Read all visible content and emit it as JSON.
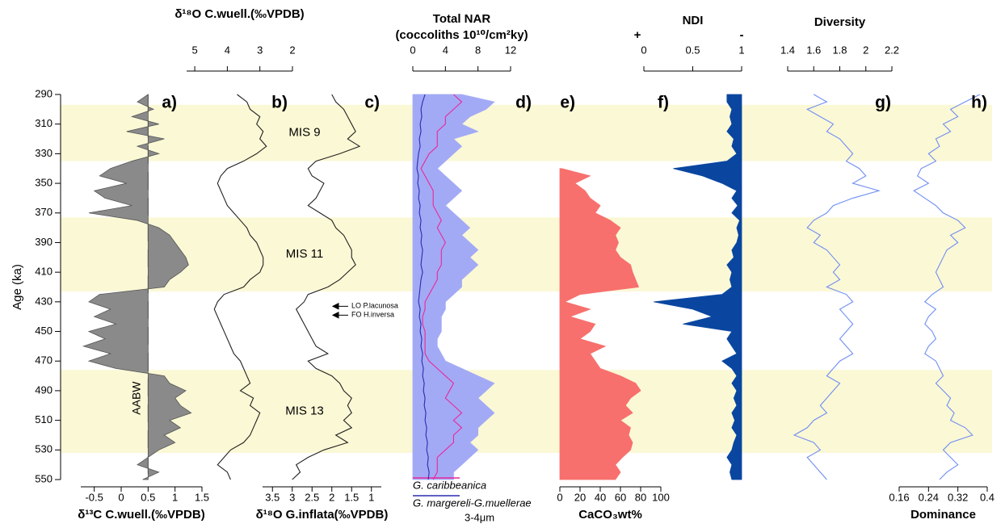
{
  "chart_data": [
    {
      "type": "axis",
      "ylabel": "Age (ka)",
      "ylim": [
        290,
        550
      ],
      "yticks": [
        290,
        310,
        330,
        350,
        370,
        390,
        410,
        430,
        450,
        470,
        490,
        510,
        530,
        550
      ],
      "y": [
        290,
        295,
        300,
        305,
        310,
        315,
        320,
        325,
        330,
        335,
        340,
        345,
        350,
        355,
        360,
        365,
        370,
        375,
        380,
        385,
        390,
        395,
        400,
        405,
        410,
        415,
        420,
        425,
        430,
        435,
        440,
        445,
        450,
        455,
        460,
        465,
        470,
        475,
        480,
        485,
        490,
        495,
        500,
        505,
        510,
        515,
        520,
        525,
        530,
        535,
        540,
        545,
        550
      ],
      "band_color": "#fbf8d5",
      "bands": [
        {
          "from": 297,
          "to": 335,
          "label": "MIS 9"
        },
        {
          "from": 373,
          "to": 423,
          "label": "MIS 11"
        },
        {
          "from": 476,
          "to": 532,
          "label": "MIS 13"
        }
      ]
    },
    {
      "type": "area",
      "label": "a)",
      "xlabel": "δ¹³C C.wuell.(‰VPDB)",
      "xaxis": "bottom",
      "xlim": [
        -0.75,
        1.5
      ],
      "xticks": [
        -0.5,
        0,
        0.5,
        1,
        1.5
      ],
      "fill_baseline": 0.5,
      "baseline_line": true,
      "annotations": [
        {
          "text": "AABW",
          "y": 495,
          "orientation": "vertical"
        }
      ],
      "series": [
        {
          "color": "#8a8a8a",
          "fill": true,
          "values": [
            0.5,
            0.3,
            0.6,
            0.2,
            0.7,
            0.1,
            0.8,
            0.3,
            0.7,
            0.2,
            -0.2,
            -0.4,
            0.1,
            -0.5,
            -0.3,
            0.2,
            -0.6,
            0.3,
            0.7,
            0.9,
            1.0,
            1.1,
            1.2,
            1.25,
            1.1,
            0.9,
            0.8,
            -0.4,
            -0.6,
            -0.2,
            -0.5,
            -0.1,
            -0.6,
            -0.3,
            -0.7,
            -0.2,
            -0.6,
            -0.1,
            0.8,
            0.9,
            1.2,
            1.0,
            1.1,
            1.3,
            0.9,
            1.1,
            0.8,
            1.0,
            0.7,
            0.5,
            0.3,
            0.7,
            0.4
          ]
        }
      ]
    },
    {
      "type": "line",
      "label": "b)",
      "xlabel": "δ¹⁸O C.wuell.(‰VPDB)",
      "xaxis": "top",
      "xlim": [
        5.25,
        2
      ],
      "xticks": [
        5,
        4,
        3,
        2
      ],
      "series": [
        {
          "color": "#222",
          "values": [
            3.7,
            3.4,
            3.3,
            3.0,
            3.1,
            2.9,
            3.0,
            2.8,
            3.1,
            3.5,
            4.0,
            4.2,
            4.3,
            4.2,
            4.1,
            4.0,
            3.8,
            3.6,
            3.4,
            3.3,
            3.1,
            3.0,
            2.9,
            2.9,
            3.0,
            3.3,
            3.5,
            4.1,
            4.3,
            4.4,
            4.3,
            4.2,
            4.1,
            4.0,
            3.9,
            3.8,
            3.6,
            3.5,
            3.4,
            3.3,
            3.6,
            3.2,
            3.3,
            3.0,
            3.1,
            3.2,
            3.3,
            3.5,
            3.9,
            4.1,
            4.3,
            4.0,
            3.9
          ]
        }
      ]
    },
    {
      "type": "line",
      "label": "c)",
      "xlabel": "δ¹⁸O G.inflata(‰VPDB)",
      "xaxis": "bottom",
      "xlim": [
        3.75,
        0.75
      ],
      "xticks": [
        3.5,
        3,
        2.5,
        2,
        1.5,
        1
      ],
      "annotations": [
        {
          "text": "LO P.lacunosa",
          "y": 433,
          "orientation": "arrow"
        },
        {
          "text": "FO H.inversa",
          "y": 439,
          "orientation": "arrow"
        }
      ],
      "series": [
        {
          "color": "#222",
          "values": [
            2.0,
            1.9,
            1.7,
            1.6,
            1.5,
            1.4,
            1.6,
            1.3,
            1.8,
            2.4,
            2.6,
            2.5,
            2.2,
            2.3,
            2.4,
            2.6,
            2.3,
            2.0,
            1.9,
            1.7,
            1.6,
            1.5,
            1.5,
            1.4,
            1.6,
            1.8,
            2.1,
            2.6,
            2.7,
            2.9,
            2.8,
            2.7,
            2.6,
            2.5,
            2.4,
            2.1,
            2.6,
            2.4,
            2.0,
            1.8,
            1.7,
            1.5,
            1.6,
            1.5,
            1.7,
            1.5,
            1.9,
            1.6,
            2.2,
            2.6,
            2.9,
            2.8,
            3.0
          ]
        }
      ]
    },
    {
      "type": "area",
      "label": "d)",
      "title": "Total NAR",
      "title_color": "#a3aaf5",
      "xlabel": "(coccoliths 10¹⁰/cm²ky)",
      "xaxis": "top",
      "xlim": [
        0,
        12
      ],
      "xticks": [
        0,
        4,
        8,
        12
      ],
      "fill_baseline": 0,
      "series": [
        {
          "color": "#a3aaf5",
          "fill": true,
          "values": [
            6,
            10,
            9,
            7,
            6,
            8,
            5,
            6,
            5,
            4,
            3,
            4,
            5,
            6,
            5,
            4,
            5,
            6,
            7,
            6,
            7,
            8,
            7,
            8,
            7,
            6,
            6,
            5,
            4,
            4,
            3.5,
            3.5,
            3.5,
            3,
            3,
            3.5,
            4,
            6,
            8,
            10,
            9,
            8,
            9,
            10,
            9,
            8,
            8,
            7,
            8,
            7,
            6,
            5,
            5
          ]
        },
        {
          "name": "G. caribbeanica",
          "color": "#e8289b",
          "legend": true,
          "values": [
            5,
            6,
            5,
            4,
            4,
            3,
            3,
            3,
            2,
            1.5,
            1,
            1.5,
            2,
            2.5,
            2.5,
            2.5,
            3,
            3.5,
            3,
            3.5,
            4,
            3.5,
            3.5,
            3.5,
            3,
            3,
            2.5,
            2,
            1.5,
            1.5,
            1.2,
            1.2,
            1.5,
            1.5,
            1.5,
            1.5,
            2,
            3,
            4,
            5,
            4.5,
            4,
            5,
            6,
            5,
            6,
            5,
            5,
            4,
            3,
            3,
            3,
            2.5
          ]
        },
        {
          "name": "G. margereli-G.muellerae",
          "subname": "3-4μm",
          "color": "#2b2bb0",
          "legend": true,
          "values": [
            1.5,
            1.2,
            1,
            1.1,
            0.9,
            1,
            0.8,
            0.9,
            0.7,
            0.6,
            0.5,
            0.7,
            0.6,
            0.8,
            0.7,
            0.9,
            0.8,
            1,
            0.9,
            1.1,
            1,
            1.2,
            1.1,
            1,
            1.2,
            1,
            0.9,
            0.8,
            0.7,
            0.9,
            0.8,
            1,
            0.9,
            1.1,
            1,
            1.2,
            1.1,
            1.3,
            1.2,
            1.4,
            1.3,
            1.5,
            1.4,
            1.6,
            1.5,
            1.7,
            1.6,
            1.8,
            1.7,
            1.9,
            1.8,
            2,
            1.9
          ]
        }
      ]
    },
    {
      "type": "area",
      "label": "e)",
      "xlabel": "CaCO₃wt%",
      "xlabel_color": "#f7706d",
      "xaxis": "bottom",
      "xlim": [
        0,
        100
      ],
      "xticks": [
        0,
        20,
        40,
        60,
        80,
        100
      ],
      "fill_baseline": 0,
      "series": [
        {
          "color": "#f7706d",
          "fill": true,
          "values": [
            null,
            null,
            null,
            null,
            null,
            null,
            null,
            null,
            null,
            null,
            2,
            30,
            15,
            25,
            30,
            40,
            35,
            50,
            60,
            55,
            58,
            55,
            60,
            70,
            72,
            75,
            78,
            20,
            5,
            30,
            10,
            35,
            30,
            20,
            45,
            30,
            35,
            40,
            60,
            75,
            80,
            70,
            65,
            72,
            60,
            70,
            68,
            72,
            70,
            62,
            55,
            60,
            55
          ]
        }
      ]
    },
    {
      "type": "area",
      "label": "f)",
      "title": "NDI",
      "title_color": "#0a46a0",
      "xaxis": "top",
      "xlim": [
        0,
        1
      ],
      "xticks": [
        0,
        0.5,
        1
      ],
      "fill_baseline": 1,
      "end_labels": [
        "+",
        "-"
      ],
      "series": [
        {
          "color": "#0a46a0",
          "fill": true,
          "values": [
            0.85,
            0.85,
            0.9,
            0.88,
            0.9,
            0.85,
            0.92,
            0.9,
            0.95,
            0.85,
            0.3,
            0.6,
            0.8,
            0.95,
            0.9,
            0.96,
            0.9,
            0.98,
            0.95,
            0.97,
            0.95,
            0.9,
            0.92,
            0.85,
            0.9,
            0.88,
            0.9,
            0.8,
            0.1,
            0.5,
            0.7,
            0.4,
            0.9,
            0.85,
            0.9,
            0.95,
            0.8,
            0.9,
            0.95,
            0.9,
            0.95,
            0.92,
            0.95,
            0.9,
            0.93,
            0.9,
            0.95,
            0.92,
            0.9,
            0.85,
            0.9,
            0.88,
            0.9
          ]
        }
      ]
    },
    {
      "type": "line",
      "label": "g)",
      "title": "Diversity",
      "title_color": "#6f8ef2",
      "xaxis": "top",
      "xlim": [
        1.4,
        2.2
      ],
      "xticks": [
        1.4,
        1.6,
        1.8,
        2,
        2.2
      ],
      "series": [
        {
          "color": "#6f8ef2",
          "values": [
            1.6,
            1.7,
            1.55,
            1.65,
            1.75,
            1.7,
            1.8,
            1.85,
            1.9,
            1.85,
            1.95,
            2.0,
            1.9,
            2.1,
            1.9,
            1.75,
            1.7,
            1.6,
            1.55,
            1.65,
            1.6,
            1.7,
            1.75,
            1.8,
            1.75,
            1.8,
            1.7,
            1.85,
            1.9,
            1.8,
            1.85,
            1.9,
            1.85,
            1.8,
            1.85,
            1.9,
            1.8,
            1.75,
            1.7,
            1.8,
            1.75,
            1.7,
            1.65,
            1.7,
            1.6,
            1.55,
            1.45,
            1.6,
            1.65,
            1.55,
            1.6,
            1.65,
            1.7
          ]
        }
      ]
    },
    {
      "type": "line",
      "label": "h)",
      "xlabel": "Dominance",
      "xlabel_color": "#6f8ef2",
      "xaxis": "bottom",
      "xlim": [
        0.16,
        0.4
      ],
      "xticks": [
        0.16,
        0.24,
        0.32,
        0.4
      ],
      "series": [
        {
          "color": "#6f8ef2",
          "values": [
            0.38,
            0.34,
            0.3,
            0.32,
            0.28,
            0.3,
            0.26,
            0.27,
            0.24,
            0.26,
            0.22,
            0.21,
            0.24,
            0.2,
            0.23,
            0.26,
            0.28,
            0.32,
            0.34,
            0.3,
            0.32,
            0.29,
            0.28,
            0.27,
            0.26,
            0.27,
            0.28,
            0.25,
            0.23,
            0.26,
            0.24,
            0.23,
            0.25,
            0.26,
            0.24,
            0.23,
            0.26,
            0.27,
            0.28,
            0.26,
            0.28,
            0.3,
            0.29,
            0.31,
            0.3,
            0.34,
            0.36,
            0.3,
            0.28,
            0.3,
            0.32,
            0.29,
            0.27
          ]
        }
      ]
    }
  ]
}
